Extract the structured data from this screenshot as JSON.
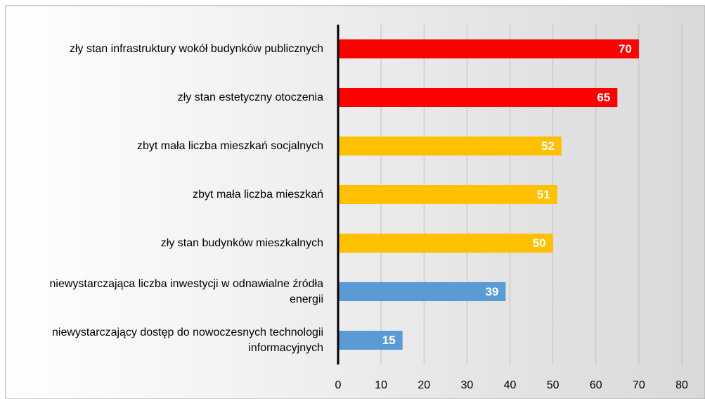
{
  "chart_data": {
    "type": "bar",
    "orientation": "horizontal",
    "categories": [
      "zły stan infrastruktury wokół budynków publicznych",
      "zły stan estetyczny otoczenia",
      "zbyt mała liczba mieszkań socjalnych",
      "zbyt mała liczba mieszkań",
      "zły stan budynków mieszkalnych",
      "niewystarczająca liczba inwestycji w odnawialne źródła energii",
      "niewystarczający dostęp do nowoczesnych technologii informacyjnych"
    ],
    "values": [
      70,
      65,
      52,
      51,
      50,
      39,
      15
    ],
    "colors": [
      "#ff0000",
      "#ff0000",
      "#ffc000",
      "#ffc000",
      "#ffc000",
      "#5b9bd5",
      "#5b9bd5"
    ],
    "xlim": [
      0,
      80
    ],
    "xticks": [
      0,
      10,
      20,
      30,
      40,
      50,
      60,
      70,
      80
    ],
    "grid": true
  }
}
